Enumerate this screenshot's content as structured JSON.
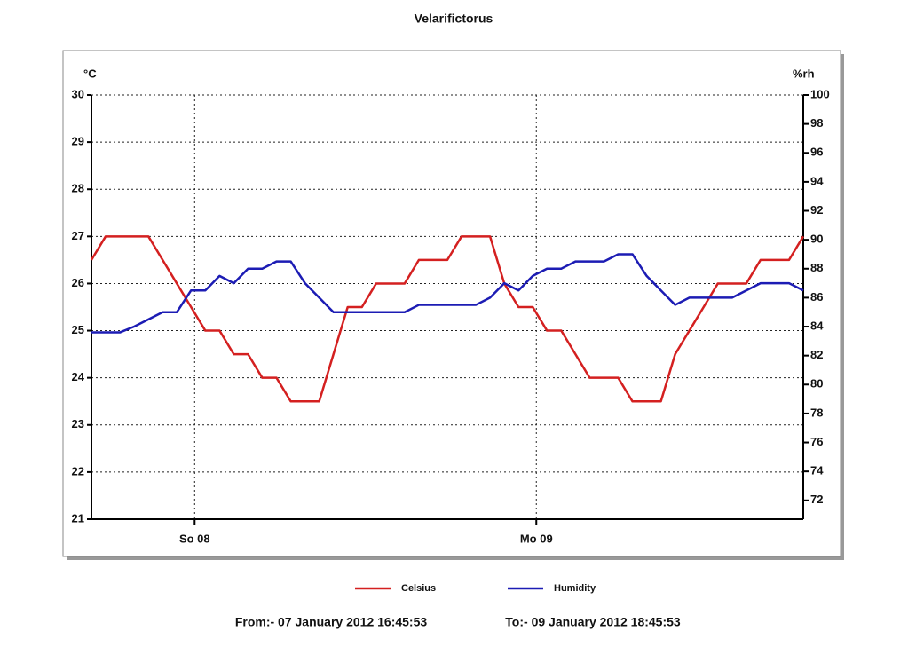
{
  "chart_data": {
    "type": "line",
    "title": "Velarifictorus",
    "ylabel": "°C",
    "y2label": "%rh",
    "x": [
      0,
      1,
      2,
      3,
      4,
      5,
      6,
      7,
      8,
      9,
      10,
      11,
      12,
      13,
      14,
      15,
      16,
      17,
      18,
      19,
      20,
      21,
      22,
      23,
      24,
      25,
      26,
      27,
      28,
      29,
      30,
      31,
      32,
      33,
      34,
      35,
      36,
      37,
      38,
      39,
      40,
      41,
      42,
      43,
      44,
      45,
      46,
      47,
      48,
      49,
      50
    ],
    "xlim": [
      0,
      50
    ],
    "xticks": [
      {
        "value": 7.25,
        "label": "So 08"
      },
      {
        "value": 31.25,
        "label": "Mo 09"
      }
    ],
    "ylim": [
      21,
      30
    ],
    "yticks": [
      21,
      22,
      23,
      24,
      25,
      26,
      27,
      28,
      29,
      30
    ],
    "y2lim": [
      70.7,
      100
    ],
    "y2ticks": [
      72,
      74,
      76,
      78,
      80,
      82,
      84,
      86,
      88,
      90,
      92,
      94,
      96,
      98,
      100
    ],
    "grid": true,
    "legend": "bottom",
    "series": [
      {
        "name": "Celsius",
        "color": "#d42020",
        "values": [
          26.5,
          27,
          27,
          27,
          27,
          26.5,
          26,
          25.5,
          25,
          25,
          24.5,
          24.5,
          24,
          24,
          23.5,
          23.5,
          23.5,
          24.5,
          25.5,
          25.5,
          26,
          26,
          26,
          26.5,
          26.5,
          26.5,
          27,
          27,
          27,
          26,
          25.5,
          25.5,
          25,
          25,
          24.5,
          24,
          24,
          24,
          23.5,
          23.5,
          23.5,
          24.5,
          25,
          25.5,
          26,
          26,
          26,
          26.5,
          26.5,
          26.5,
          27
        ]
      },
      {
        "name": "Humidity",
        "color": "#1c1cb4",
        "axis": "y2",
        "values": [
          83.6,
          83.6,
          83.6,
          84,
          84.5,
          85,
          85,
          86.5,
          86.5,
          87.5,
          87,
          88,
          88,
          88.5,
          88.5,
          87,
          86,
          85,
          85,
          85,
          85,
          85,
          85,
          85.5,
          85.5,
          85.5,
          85.5,
          85.5,
          86,
          87,
          86.5,
          87.5,
          88,
          88,
          88.5,
          88.5,
          88.5,
          89,
          89,
          87.5,
          86.5,
          85.5,
          86,
          86,
          86,
          86,
          86.5,
          87,
          87,
          87,
          86.5
        ]
      }
    ],
    "footer": {
      "from": "From:-  07 January 2012 16:45:53",
      "to": "To:-  09 January 2012 18:45:53"
    }
  }
}
